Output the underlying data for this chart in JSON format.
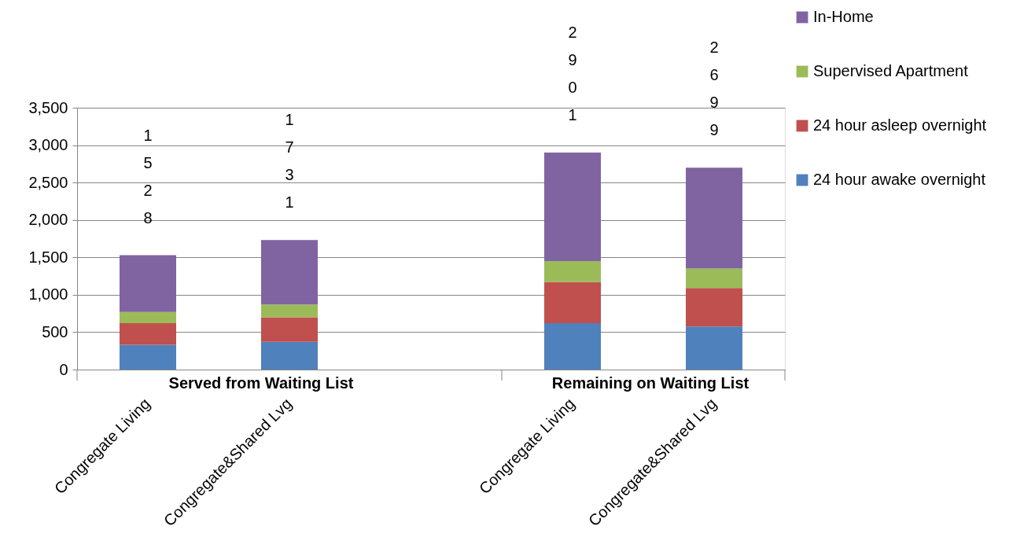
{
  "chart_data": {
    "type": "bar",
    "stacked": true,
    "categories": [
      "Congregate Living",
      "Congregate&Shared Lvg",
      null,
      "Congregate Living",
      "Congregate&Shared Lvg"
    ],
    "series": [
      {
        "name": "24 hour awake overnight",
        "color": "#4f81bd",
        "values": [
          330,
          370,
          null,
          620,
          575
        ]
      },
      {
        "name": "24 hour asleep overnight",
        "color": "#c0504d",
        "values": [
          290,
          330,
          null,
          550,
          515
        ]
      },
      {
        "name": "Supervised Apartment",
        "color": "#9bbb59",
        "values": [
          150,
          170,
          null,
          280,
          260
        ]
      },
      {
        "name": "In-Home",
        "color": "#8064a2",
        "values": [
          758,
          861,
          null,
          1451,
          1349
        ]
      }
    ],
    "totals": [
      "1528",
      "1731",
      null,
      "2901",
      "2699"
    ],
    "annotations": [
      "Served from Waiting List",
      "Remaining on Waiting List"
    ],
    "ylim": [
      0,
      3500
    ],
    "yticks": [
      0,
      500,
      {
        "value": 1000,
        "label": "1,000"
      },
      {
        "value": 1500,
        "label": "1,500"
      },
      {
        "value": 2000,
        "label": "2,000"
      },
      {
        "value": 2500,
        "label": "2,500"
      },
      {
        "value": 3000,
        "label": "3,000"
      },
      {
        "value": 3500,
        "label": "3,500"
      }
    ],
    "grid": "y",
    "legend": "right"
  }
}
